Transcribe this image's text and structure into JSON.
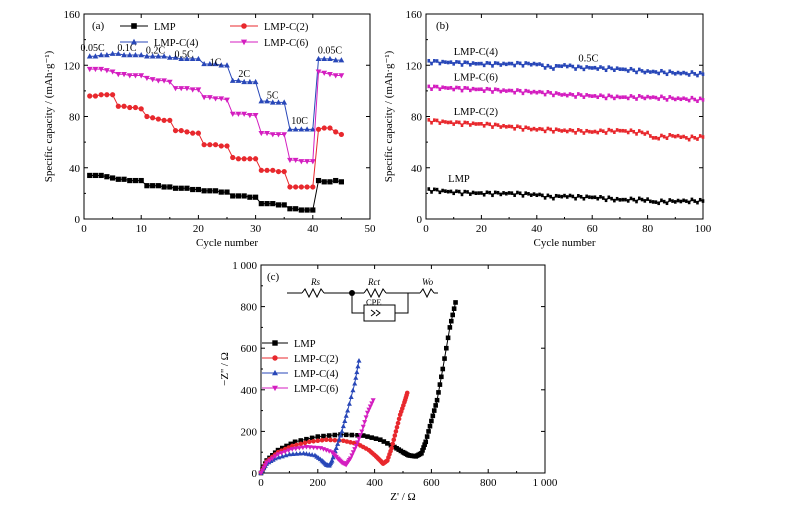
{
  "colors": {
    "LMP": "#000000",
    "LMP-C(2)": "#e8282d",
    "LMP-C(4)": "#2847b8",
    "LMP-C(6)": "#d41ec0"
  },
  "chart_data": [
    {
      "id": "a",
      "panel_label": "(a)",
      "type": "line",
      "xlabel": "Cycle number",
      "ylabel": "Specific capacity / (mAh·g⁻¹)",
      "xlim": [
        0,
        50
      ],
      "ylim": [
        0,
        160
      ],
      "xticks": [
        "0",
        "10",
        "20",
        "30",
        "40",
        "50"
      ],
      "yticks": [
        "0",
        "40",
        "80",
        "120",
        "160"
      ],
      "legend": {
        "placement": "top-center",
        "columns": 2
      },
      "annotations": [
        {
          "text": "0.05C",
          "x": 1.5,
          "y": 131
        },
        {
          "text": "0.1C",
          "x": 7.5,
          "y": 131
        },
        {
          "text": "0.2C",
          "x": 12.5,
          "y": 129
        },
        {
          "text": "0.5C",
          "x": 17.5,
          "y": 126
        },
        {
          "text": "1C",
          "x": 23,
          "y": 120
        },
        {
          "text": "2C",
          "x": 28,
          "y": 111
        },
        {
          "text": "5C",
          "x": 33,
          "y": 94
        },
        {
          "text": "10C",
          "x": 37.7,
          "y": 74
        },
        {
          "text": "0.05C",
          "x": 43,
          "y": 129
        }
      ],
      "series": [
        {
          "name": "LMP",
          "marker": "square",
          "x": [
            1,
            2,
            3,
            4,
            5,
            6,
            7,
            8,
            9,
            10,
            11,
            12,
            13,
            14,
            15,
            16,
            17,
            18,
            19,
            20,
            21,
            22,
            23,
            24,
            25,
            26,
            27,
            28,
            29,
            30,
            31,
            32,
            33,
            34,
            35,
            36,
            37,
            38,
            39,
            40,
            41,
            42,
            43,
            44,
            45
          ],
          "y": [
            34,
            34,
            34,
            33,
            32,
            31,
            31,
            30,
            30,
            30,
            26,
            26,
            26,
            25,
            25,
            24,
            24,
            24,
            23,
            23,
            22,
            22,
            22,
            21,
            21,
            18,
            18,
            18,
            17,
            17,
            12,
            12,
            12,
            11,
            11,
            8,
            8,
            7,
            7,
            7,
            30,
            29,
            29,
            30,
            29
          ]
        },
        {
          "name": "LMP-C(2)",
          "marker": "circle",
          "x": [
            1,
            2,
            3,
            4,
            5,
            6,
            7,
            8,
            9,
            10,
            11,
            12,
            13,
            14,
            15,
            16,
            17,
            18,
            19,
            20,
            21,
            22,
            23,
            24,
            25,
            26,
            27,
            28,
            29,
            30,
            31,
            32,
            33,
            34,
            35,
            36,
            37,
            38,
            39,
            40,
            41,
            42,
            43,
            44,
            45
          ],
          "y": [
            96,
            96,
            97,
            97,
            97,
            88,
            88,
            87,
            87,
            86,
            80,
            79,
            78,
            77,
            77,
            69,
            69,
            68,
            67,
            67,
            58,
            58,
            58,
            57,
            57,
            48,
            47,
            47,
            47,
            47,
            38,
            38,
            38,
            37,
            37,
            25,
            25,
            25,
            25,
            25,
            70,
            71,
            71,
            68,
            66
          ]
        },
        {
          "name": "LMP-C(4)",
          "marker": "triangle-up",
          "x": [
            1,
            2,
            3,
            4,
            5,
            6,
            7,
            8,
            9,
            10,
            11,
            12,
            13,
            14,
            15,
            16,
            17,
            18,
            19,
            20,
            21,
            22,
            23,
            24,
            25,
            26,
            27,
            28,
            29,
            30,
            31,
            32,
            33,
            34,
            35,
            36,
            37,
            38,
            39,
            40,
            41,
            42,
            43,
            44,
            45
          ],
          "y": [
            127,
            127,
            128,
            128,
            129,
            129,
            128,
            128,
            128,
            128,
            127,
            127,
            127,
            127,
            126,
            126,
            125,
            125,
            125,
            125,
            121,
            121,
            121,
            120,
            120,
            108,
            108,
            107,
            107,
            107,
            92,
            92,
            91,
            91,
            91,
            70,
            70,
            70,
            70,
            70,
            125,
            125,
            125,
            124,
            124
          ]
        },
        {
          "name": "LMP-C(6)",
          "marker": "triangle-down",
          "x": [
            1,
            2,
            3,
            4,
            5,
            6,
            7,
            8,
            9,
            10,
            11,
            12,
            13,
            14,
            15,
            16,
            17,
            18,
            19,
            20,
            21,
            22,
            23,
            24,
            25,
            26,
            27,
            28,
            29,
            30,
            31,
            32,
            33,
            34,
            35,
            36,
            37,
            38,
            39,
            40,
            41,
            42,
            43,
            44,
            45
          ],
          "y": [
            117,
            117,
            117,
            116,
            115,
            113,
            113,
            112,
            112,
            112,
            110,
            109,
            108,
            108,
            107,
            102,
            102,
            102,
            101,
            101,
            95,
            95,
            94,
            94,
            93,
            82,
            82,
            82,
            81,
            81,
            67,
            67,
            66,
            66,
            66,
            46,
            46,
            45,
            45,
            45,
            115,
            114,
            113,
            112,
            112
          ]
        }
      ]
    },
    {
      "id": "b",
      "panel_label": "(b)",
      "type": "line",
      "xlabel": "Cycle number",
      "ylabel": "Specific capacity / (mAh·g⁻¹)",
      "xlim": [
        0,
        100
      ],
      "ylim": [
        0,
        160
      ],
      "xticks": [
        "0",
        "20",
        "40",
        "60",
        "80",
        "100"
      ],
      "yticks": [
        "0",
        "40",
        "80",
        "120",
        "160"
      ],
      "annotations": [
        {
          "text": "0.5C",
          "x": 55,
          "y": 123
        },
        {
          "text": "LMP-C(4)",
          "x": 10,
          "y": 128
        },
        {
          "text": "LMP-C(6)",
          "x": 10,
          "y": 108
        },
        {
          "text": "LMP-C(2)",
          "x": 10,
          "y": 81
        },
        {
          "text": "LMP",
          "x": 8,
          "y": 29
        }
      ],
      "series": [
        {
          "name": "LMP",
          "x": [
            0,
            10,
            20,
            30,
            40,
            45,
            50,
            55,
            60,
            70,
            80,
            82,
            90,
            100
          ],
          "y": [
            23,
            21,
            20,
            20,
            19,
            17,
            18,
            17,
            17,
            15,
            15,
            13,
            14,
            14
          ]
        },
        {
          "name": "LMP-C(2)",
          "x": [
            0,
            10,
            20,
            30,
            40,
            50,
            60,
            70,
            80,
            82,
            85,
            90,
            95,
            100
          ],
          "y": [
            77,
            75,
            74,
            72,
            70,
            69,
            68,
            69,
            67,
            63,
            64,
            65,
            63,
            64
          ]
        },
        {
          "name": "LMP-C(4)",
          "x": [
            0,
            10,
            20,
            30,
            40,
            45,
            50,
            55,
            60,
            70,
            80,
            90,
            100
          ],
          "y": [
            123,
            122,
            121,
            121,
            121,
            118,
            120,
            118,
            118,
            117,
            115,
            114,
            113
          ]
        },
        {
          "name": "LMP-C(6)",
          "x": [
            0,
            10,
            20,
            30,
            40,
            50,
            60,
            70,
            80,
            90,
            100
          ],
          "y": [
            103,
            102,
            101,
            100,
            99,
            97,
            96,
            95,
            95,
            94,
            93
          ]
        }
      ]
    },
    {
      "id": "c",
      "panel_label": "(c)",
      "type": "scatter",
      "xlabel": "Z' / Ω",
      "ylabel": "−Z'' / Ω",
      "xlim": [
        0,
        1000
      ],
      "ylim": [
        0,
        1000
      ],
      "xticks": [
        "0",
        "200",
        "400",
        "600",
        "800",
        "1 000"
      ],
      "yticks": [
        "0",
        "200",
        "400",
        "600",
        "800",
        "1 000"
      ],
      "legend": {
        "placement": "middle-left"
      },
      "circuit": {
        "labels": [
          "Rs",
          "Rct",
          "CPE",
          "Wo"
        ]
      },
      "series": [
        {
          "name": "LMP",
          "marker": "square",
          "points": [
            [
              0,
              0
            ],
            [
              20,
              60
            ],
            [
              60,
              110
            ],
            [
              120,
              150
            ],
            [
              200,
              175
            ],
            [
              280,
              185
            ],
            [
              360,
              180
            ],
            [
              420,
              160
            ],
            [
              470,
              125
            ],
            [
              500,
              100
            ],
            [
              520,
              85
            ],
            [
              545,
              80
            ],
            [
              565,
              95
            ],
            [
              580,
              150
            ],
            [
              600,
              250
            ],
            [
              620,
              350
            ],
            [
              640,
              500
            ],
            [
              665,
              700
            ],
            [
              685,
              820
            ]
          ]
        },
        {
          "name": "LMP-C(2)",
          "marker": "circle",
          "points": [
            [
              0,
              0
            ],
            [
              20,
              55
            ],
            [
              60,
              100
            ],
            [
              110,
              130
            ],
            [
              170,
              150
            ],
            [
              230,
              160
            ],
            [
              290,
              155
            ],
            [
              340,
              140
            ],
            [
              380,
              110
            ],
            [
              405,
              80
            ],
            [
              420,
              60
            ],
            [
              430,
              45
            ],
            [
              445,
              60
            ],
            [
              460,
              120
            ],
            [
              475,
              200
            ],
            [
              490,
              280
            ],
            [
              505,
              340
            ],
            [
              515,
              385
            ]
          ]
        },
        {
          "name": "LMP-C(4)",
          "marker": "triangle-up",
          "points": [
            [
              0,
              0
            ],
            [
              20,
              45
            ],
            [
              50,
              70
            ],
            [
              100,
              90
            ],
            [
              150,
              95
            ],
            [
              190,
              85
            ],
            [
              215,
              60
            ],
            [
              230,
              40
            ],
            [
              240,
              35
            ],
            [
              250,
              60
            ],
            [
              265,
              120
            ],
            [
              285,
              200
            ],
            [
              305,
              300
            ],
            [
              330,
              430
            ],
            [
              345,
              540
            ]
          ]
        },
        {
          "name": "LMP-C(6)",
          "marker": "triangle-down",
          "points": [
            [
              0,
              0
            ],
            [
              20,
              50
            ],
            [
              60,
              90
            ],
            [
              110,
              115
            ],
            [
              160,
              125
            ],
            [
              210,
              120
            ],
            [
              250,
              100
            ],
            [
              270,
              70
            ],
            [
              285,
              50
            ],
            [
              300,
              40
            ],
            [
              315,
              70
            ],
            [
              335,
              130
            ],
            [
              355,
              200
            ],
            [
              375,
              290
            ],
            [
              395,
              350
            ]
          ]
        }
      ]
    }
  ]
}
